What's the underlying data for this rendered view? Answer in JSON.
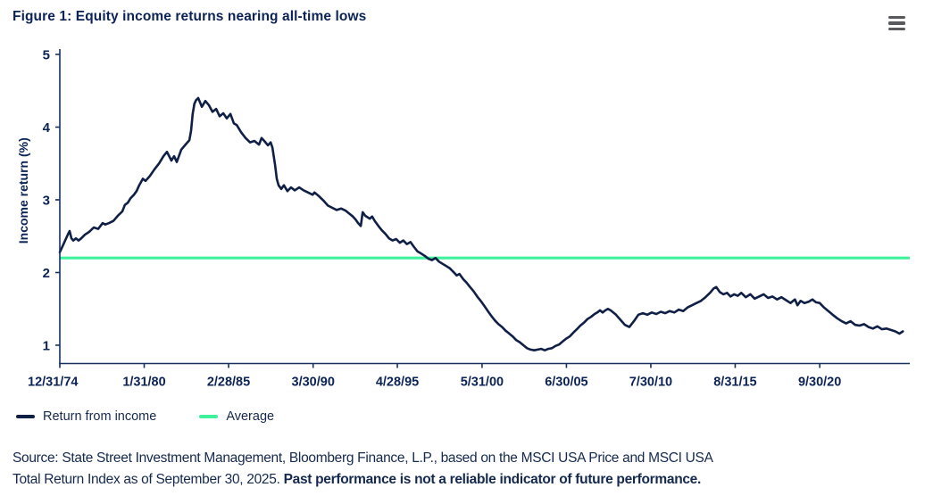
{
  "header": {
    "title": "Figure 1: Equity income returns nearing all-time lows"
  },
  "colors": {
    "series_navy": "#101f45",
    "average_green": "#3df29a",
    "text_navy": "#0b2356",
    "axis_navy": "#17305e",
    "menu_gray": "#58595c"
  },
  "chart_data": {
    "type": "line",
    "title": "Figure 1: Equity income returns nearing all-time lows",
    "xlabel": "",
    "ylabel": "Income return (%)",
    "ylim": [
      0.75,
      5.0
    ],
    "yticks": [
      1,
      2,
      3,
      4,
      5
    ],
    "xlim_years": [
      1975.0,
      2026.05
    ],
    "xticks": [
      {
        "label": "12/31/74",
        "year": 1975.0
      },
      {
        "label": "1/31/80",
        "year": 1980.08
      },
      {
        "label": "2/28/85",
        "year": 1985.16
      },
      {
        "label": "3/30/90",
        "year": 1990.25
      },
      {
        "label": "4/28/95",
        "year": 1995.32
      },
      {
        "label": "5/31/00",
        "year": 2000.42
      },
      {
        "label": "6/30/05",
        "year": 2005.5
      },
      {
        "label": "7/30/10",
        "year": 2010.58
      },
      {
        "label": "8/31/15",
        "year": 2015.66
      },
      {
        "label": "9/30/20",
        "year": 2020.75
      }
    ],
    "grid": false,
    "legend_position": "bottom-left",
    "series": [
      {
        "name": "Return from income",
        "color": "#101f45",
        "points": [
          [
            1975.0,
            2.28
          ],
          [
            1975.16,
            2.36
          ],
          [
            1975.32,
            2.44
          ],
          [
            1975.48,
            2.52
          ],
          [
            1975.59,
            2.57
          ],
          [
            1975.7,
            2.47
          ],
          [
            1975.81,
            2.44
          ],
          [
            1975.97,
            2.47
          ],
          [
            1976.13,
            2.44
          ],
          [
            1976.29,
            2.47
          ],
          [
            1976.51,
            2.52
          ],
          [
            1976.77,
            2.56
          ],
          [
            1977.04,
            2.62
          ],
          [
            1977.31,
            2.6
          ],
          [
            1977.58,
            2.68
          ],
          [
            1977.74,
            2.66
          ],
          [
            1977.96,
            2.68
          ],
          [
            1978.23,
            2.71
          ],
          [
            1978.49,
            2.78
          ],
          [
            1978.76,
            2.84
          ],
          [
            1978.92,
            2.93
          ],
          [
            1979.09,
            2.96
          ],
          [
            1979.25,
            3.02
          ],
          [
            1979.46,
            3.07
          ],
          [
            1979.62,
            3.12
          ],
          [
            1979.78,
            3.2
          ],
          [
            1980.0,
            3.29
          ],
          [
            1980.16,
            3.26
          ],
          [
            1980.43,
            3.33
          ],
          [
            1980.7,
            3.42
          ],
          [
            1980.97,
            3.5
          ],
          [
            1981.24,
            3.6
          ],
          [
            1981.45,
            3.66
          ],
          [
            1981.72,
            3.54
          ],
          [
            1981.88,
            3.6
          ],
          [
            1982.04,
            3.52
          ],
          [
            1982.31,
            3.69
          ],
          [
            1982.53,
            3.75
          ],
          [
            1982.8,
            3.82
          ],
          [
            1982.9,
            3.95
          ],
          [
            1983.0,
            4.18
          ],
          [
            1983.1,
            4.32
          ],
          [
            1983.2,
            4.37
          ],
          [
            1983.33,
            4.4
          ],
          [
            1983.55,
            4.28
          ],
          [
            1983.76,
            4.36
          ],
          [
            1983.98,
            4.3
          ],
          [
            1984.19,
            4.21
          ],
          [
            1984.41,
            4.25
          ],
          [
            1984.62,
            4.15
          ],
          [
            1984.84,
            4.19
          ],
          [
            1985.05,
            4.12
          ],
          [
            1985.27,
            4.18
          ],
          [
            1985.48,
            4.05
          ],
          [
            1985.65,
            4.03
          ],
          [
            1985.91,
            3.93
          ],
          [
            1986.18,
            3.85
          ],
          [
            1986.45,
            3.79
          ],
          [
            1986.72,
            3.81
          ],
          [
            1986.99,
            3.76
          ],
          [
            1987.15,
            3.85
          ],
          [
            1987.31,
            3.81
          ],
          [
            1987.53,
            3.75
          ],
          [
            1987.69,
            3.79
          ],
          [
            1987.8,
            3.72
          ],
          [
            1987.96,
            3.48
          ],
          [
            1988.06,
            3.29
          ],
          [
            1988.17,
            3.2
          ],
          [
            1988.33,
            3.15
          ],
          [
            1988.49,
            3.2
          ],
          [
            1988.7,
            3.12
          ],
          [
            1988.92,
            3.17
          ],
          [
            1989.14,
            3.13
          ],
          [
            1989.41,
            3.17
          ],
          [
            1989.68,
            3.13
          ],
          [
            1989.95,
            3.1
          ],
          [
            1990.22,
            3.07
          ],
          [
            1990.33,
            3.1
          ],
          [
            1990.6,
            3.05
          ],
          [
            1990.87,
            2.99
          ],
          [
            1991.14,
            2.92
          ],
          [
            1991.41,
            2.89
          ],
          [
            1991.67,
            2.86
          ],
          [
            1991.94,
            2.88
          ],
          [
            1992.21,
            2.85
          ],
          [
            1992.48,
            2.8
          ],
          [
            1992.64,
            2.77
          ],
          [
            1992.8,
            2.73
          ],
          [
            1992.96,
            2.68
          ],
          [
            1993.12,
            2.64
          ],
          [
            1993.23,
            2.83
          ],
          [
            1993.39,
            2.78
          ],
          [
            1993.66,
            2.74
          ],
          [
            1993.8,
            2.77
          ],
          [
            1993.96,
            2.71
          ],
          [
            1994.18,
            2.64
          ],
          [
            1994.39,
            2.58
          ],
          [
            1994.61,
            2.53
          ],
          [
            1994.82,
            2.47
          ],
          [
            1995.04,
            2.44
          ],
          [
            1995.25,
            2.46
          ],
          [
            1995.47,
            2.41
          ],
          [
            1995.68,
            2.44
          ],
          [
            1995.9,
            2.39
          ],
          [
            1996.11,
            2.42
          ],
          [
            1996.33,
            2.35
          ],
          [
            1996.54,
            2.29
          ],
          [
            1996.76,
            2.26
          ],
          [
            1996.97,
            2.23
          ],
          [
            1997.19,
            2.19
          ],
          [
            1997.4,
            2.17
          ],
          [
            1997.62,
            2.2
          ],
          [
            1997.83,
            2.15
          ],
          [
            1998.04,
            2.12
          ],
          [
            1998.26,
            2.09
          ],
          [
            1998.47,
            2.06
          ],
          [
            1998.69,
            2.01
          ],
          [
            1998.9,
            1.96
          ],
          [
            1999.06,
            1.98
          ],
          [
            1999.28,
            1.91
          ],
          [
            1999.49,
            1.86
          ],
          [
            1999.7,
            1.8
          ],
          [
            1999.92,
            1.74
          ],
          [
            2000.13,
            1.67
          ],
          [
            2000.34,
            1.61
          ],
          [
            2000.56,
            1.54
          ],
          [
            2000.77,
            1.47
          ],
          [
            2000.99,
            1.4
          ],
          [
            2001.2,
            1.34
          ],
          [
            2001.41,
            1.29
          ],
          [
            2001.63,
            1.25
          ],
          [
            2001.84,
            1.2
          ],
          [
            2002.06,
            1.16
          ],
          [
            2002.27,
            1.12
          ],
          [
            2002.48,
            1.07
          ],
          [
            2002.7,
            1.04
          ],
          [
            2002.91,
            1.0
          ],
          [
            2003.13,
            0.96
          ],
          [
            2003.34,
            0.94
          ],
          [
            2003.56,
            0.93
          ],
          [
            2003.77,
            0.94
          ],
          [
            2003.98,
            0.95
          ],
          [
            2004.2,
            0.93
          ],
          [
            2004.41,
            0.95
          ],
          [
            2004.63,
            0.96
          ],
          [
            2004.84,
            0.99
          ],
          [
            2005.06,
            1.01
          ],
          [
            2005.27,
            1.05
          ],
          [
            2005.48,
            1.09
          ],
          [
            2005.7,
            1.12
          ],
          [
            2005.91,
            1.17
          ],
          [
            2006.13,
            1.22
          ],
          [
            2006.34,
            1.27
          ],
          [
            2006.56,
            1.31
          ],
          [
            2006.77,
            1.36
          ],
          [
            2006.98,
            1.39
          ],
          [
            2007.2,
            1.43
          ],
          [
            2007.36,
            1.45
          ],
          [
            2007.52,
            1.48
          ],
          [
            2007.68,
            1.45
          ],
          [
            2007.84,
            1.48
          ],
          [
            2008.0,
            1.5
          ],
          [
            2008.16,
            1.48
          ],
          [
            2008.48,
            1.42
          ],
          [
            2008.75,
            1.35
          ],
          [
            2009.02,
            1.28
          ],
          [
            2009.29,
            1.25
          ],
          [
            2009.56,
            1.33
          ],
          [
            2009.83,
            1.42
          ],
          [
            2010.1,
            1.44
          ],
          [
            2010.37,
            1.42
          ],
          [
            2010.64,
            1.45
          ],
          [
            2010.91,
            1.43
          ],
          [
            2011.18,
            1.46
          ],
          [
            2011.45,
            1.44
          ],
          [
            2011.72,
            1.47
          ],
          [
            2011.99,
            1.45
          ],
          [
            2012.26,
            1.49
          ],
          [
            2012.53,
            1.47
          ],
          [
            2012.8,
            1.52
          ],
          [
            2013.06,
            1.55
          ],
          [
            2013.33,
            1.58
          ],
          [
            2013.6,
            1.61
          ],
          [
            2013.87,
            1.66
          ],
          [
            2014.14,
            1.72
          ],
          [
            2014.36,
            1.78
          ],
          [
            2014.52,
            1.8
          ],
          [
            2014.74,
            1.73
          ],
          [
            2014.95,
            1.7
          ],
          [
            2015.17,
            1.72
          ],
          [
            2015.38,
            1.67
          ],
          [
            2015.6,
            1.7
          ],
          [
            2015.81,
            1.68
          ],
          [
            2016.03,
            1.72
          ],
          [
            2016.3,
            1.66
          ],
          [
            2016.57,
            1.7
          ],
          [
            2016.83,
            1.64
          ],
          [
            2017.1,
            1.67
          ],
          [
            2017.37,
            1.7
          ],
          [
            2017.64,
            1.65
          ],
          [
            2017.91,
            1.67
          ],
          [
            2018.18,
            1.63
          ],
          [
            2018.45,
            1.66
          ],
          [
            2018.72,
            1.62
          ],
          [
            2018.99,
            1.58
          ],
          [
            2019.26,
            1.63
          ],
          [
            2019.41,
            1.55
          ],
          [
            2019.6,
            1.61
          ],
          [
            2019.83,
            1.58
          ],
          [
            2020.1,
            1.6
          ],
          [
            2020.31,
            1.63
          ],
          [
            2020.52,
            1.59
          ],
          [
            2020.75,
            1.58
          ],
          [
            2021.0,
            1.52
          ],
          [
            2021.27,
            1.47
          ],
          [
            2021.53,
            1.42
          ],
          [
            2021.8,
            1.37
          ],
          [
            2022.07,
            1.33
          ],
          [
            2022.34,
            1.3
          ],
          [
            2022.61,
            1.33
          ],
          [
            2022.88,
            1.28
          ],
          [
            2023.15,
            1.27
          ],
          [
            2023.42,
            1.29
          ],
          [
            2023.69,
            1.25
          ],
          [
            2023.95,
            1.23
          ],
          [
            2024.22,
            1.26
          ],
          [
            2024.49,
            1.22
          ],
          [
            2024.76,
            1.23
          ],
          [
            2025.03,
            1.21
          ],
          [
            2025.3,
            1.19
          ],
          [
            2025.55,
            1.16
          ],
          [
            2025.75,
            1.19
          ]
        ]
      },
      {
        "name": "Average",
        "color": "#3df29a",
        "constant_value": 2.2
      }
    ]
  },
  "legend": {
    "items": [
      {
        "label": "Return from income",
        "color": "#101f45"
      },
      {
        "label": "Average",
        "color": "#3df29a"
      }
    ]
  },
  "source": {
    "line1": "Source: State Street Investment Management, Bloomberg Finance, L.P., based on the MSCI USA Price and MSCI USA",
    "line2_normal": "Total Return Index as of September 30, 2025. ",
    "line2_bold": "Past performance is not a reliable indicator of future performance."
  }
}
